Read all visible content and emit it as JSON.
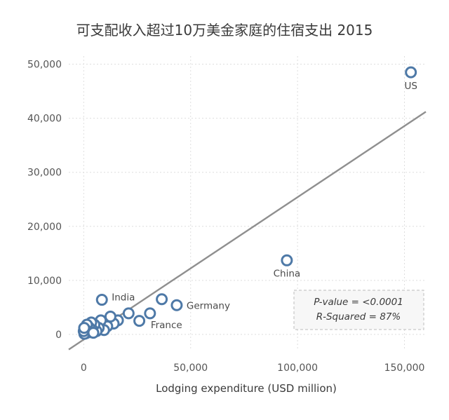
{
  "chart_data": {
    "type": "scatter",
    "title": "可支配收入超过10万美金家庭的住宿支出 2015",
    "xlabel": "Lodging expenditure (USD million)",
    "ylabel": "",
    "xlim": [
      -7000,
      160000
    ],
    "ylim": [
      -3000,
      51500
    ],
    "x_ticks": [
      0,
      50000,
      100000,
      150000
    ],
    "x_tick_labels": [
      "0",
      "50,000",
      "100,000",
      "150,000"
    ],
    "y_ticks": [
      0,
      10000,
      20000,
      30000,
      40000,
      50000
    ],
    "y_tick_labels": [
      "0",
      "10,000",
      "20,000",
      "30,000",
      "40,000",
      "50,000"
    ],
    "grid": true,
    "trend_line": {
      "x": [
        -7000,
        160000
      ],
      "y": [
        -2800,
        41200
      ]
    },
    "points": [
      {
        "x": 153000,
        "y": 48500,
        "label": "US"
      },
      {
        "x": 95000,
        "y": 13700,
        "label": "China"
      },
      {
        "x": 43500,
        "y": 5400,
        "label": "Germany"
      },
      {
        "x": 31000,
        "y": 3900,
        "label": "France"
      },
      {
        "x": 8500,
        "y": 6400,
        "label": "India"
      },
      {
        "x": 36500,
        "y": 6500,
        "label": ""
      },
      {
        "x": 26000,
        "y": 2500,
        "label": ""
      },
      {
        "x": 21000,
        "y": 3900,
        "label": ""
      },
      {
        "x": 16000,
        "y": 2600,
        "label": ""
      },
      {
        "x": 14000,
        "y": 2000,
        "label": ""
      },
      {
        "x": 12500,
        "y": 3300,
        "label": ""
      },
      {
        "x": 11000,
        "y": 1500,
        "label": ""
      },
      {
        "x": 9500,
        "y": 800,
        "label": ""
      },
      {
        "x": 8000,
        "y": 2600,
        "label": ""
      },
      {
        "x": 7000,
        "y": 1200,
        "label": ""
      },
      {
        "x": 6000,
        "y": 600,
        "label": ""
      },
      {
        "x": 5000,
        "y": 1800,
        "label": ""
      },
      {
        "x": 4000,
        "y": 900,
        "label": ""
      },
      {
        "x": 3500,
        "y": 2200,
        "label": ""
      },
      {
        "x": 3000,
        "y": 400,
        "label": ""
      },
      {
        "x": 2500,
        "y": 1300,
        "label": ""
      },
      {
        "x": 2000,
        "y": 700,
        "label": ""
      },
      {
        "x": 1500,
        "y": 1800,
        "label": ""
      },
      {
        "x": 1000,
        "y": 200,
        "label": ""
      },
      {
        "x": 800,
        "y": 900,
        "label": ""
      },
      {
        "x": 500,
        "y": 400,
        "label": ""
      },
      {
        "x": 300,
        "y": 100,
        "label": ""
      },
      {
        "x": 0,
        "y": 600,
        "label": ""
      },
      {
        "x": 200,
        "y": 1200,
        "label": ""
      },
      {
        "x": 4500,
        "y": 300,
        "label": ""
      }
    ],
    "annotations": {
      "p_value": "P-value = <0.0001",
      "r_squared": "R-Squared = 87%"
    }
  },
  "colors": {
    "point_stroke": "#4e79a7",
    "trend_line": "#8f8f8f",
    "grid": "#dedede"
  }
}
